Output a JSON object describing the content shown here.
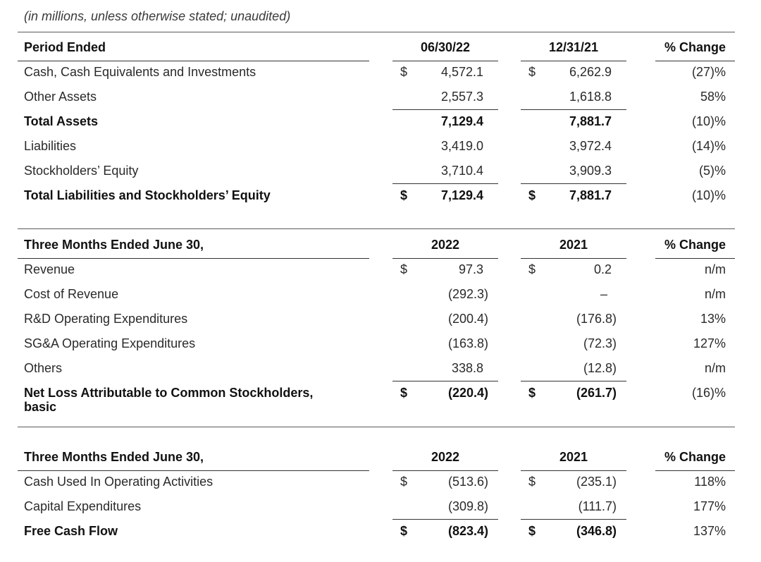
{
  "note": "(in millions, unless otherwise stated; unaudited)",
  "sections": [
    {
      "header": {
        "label": "Period Ended",
        "col1": "06/30/22",
        "col2": "12/31/21",
        "col3": "% Change"
      },
      "rows": [
        {
          "label": "Cash, Cash Equivalents and Investments",
          "d1": "$",
          "v1": "4,572.1",
          "d2": "$",
          "v2": "6,262.9",
          "pct": "(27)%"
        },
        {
          "label": "Other Assets",
          "v1": "2,557.3",
          "v2": "1,618.8",
          "pct": "58%"
        },
        {
          "label": "Total Assets",
          "v1": "7,129.4",
          "v2": "7,881.7",
          "pct": "(10)%"
        },
        {
          "label": "Liabilities",
          "v1": "3,419.0",
          "v2": "3,972.4",
          "pct": "(14)%"
        },
        {
          "label": "Stockholders’ Equity",
          "v1": "3,710.4",
          "v2": "3,909.3",
          "pct": "(5)%"
        },
        {
          "label": "Total Liabilities and Stockholders’ Equity",
          "d1": "$",
          "v1": "7,129.4",
          "d2": "$",
          "v2": "7,881.7",
          "pct": "(10)%"
        }
      ]
    },
    {
      "header": {
        "label": "Three Months Ended June 30,",
        "col1": "2022",
        "col2": "2021",
        "col3": "% Change"
      },
      "rows": [
        {
          "label": "Revenue",
          "d1": "$",
          "v1": "97.3",
          "d2": "$",
          "v2": "0.2",
          "pct": "n/m"
        },
        {
          "label": "Cost of Revenue",
          "v1": "(292.3)",
          "v2": "–",
          "pct": "n/m"
        },
        {
          "label": "R&D Operating Expenditures",
          "v1": "(200.4)",
          "v2": "(176.8)",
          "pct": "13%"
        },
        {
          "label": "SG&A Operating Expenditures",
          "v1": "(163.8)",
          "v2": "(72.3)",
          "pct": "127%"
        },
        {
          "label": "Others",
          "v1": "338.8",
          "v2": "(12.8)",
          "pct": "n/m"
        },
        {
          "label_line1": "Net Loss Attributable to Common Stockholders,",
          "label_line2": "basic",
          "d1": "$",
          "v1": "(220.4)",
          "d2": "$",
          "v2": "(261.7)",
          "pct": "(16)%"
        }
      ]
    },
    {
      "header": {
        "label": "Three Months Ended June 30,",
        "col1": "2022",
        "col2": "2021",
        "col3": "% Change"
      },
      "rows": [
        {
          "label": "Cash Used In Operating Activities",
          "d1": "$",
          "v1": "(513.6)",
          "d2": "$",
          "v2": "(235.1)",
          "pct": "118%"
        },
        {
          "label": "Capital Expenditures",
          "v1": "(309.8)",
          "v2": "(111.7)",
          "pct": "177%"
        },
        {
          "label": "Free Cash Flow",
          "d1": "$",
          "v1": "(823.4)",
          "d2": "$",
          "v2": "(346.8)",
          "pct": "137%"
        }
      ]
    }
  ]
}
